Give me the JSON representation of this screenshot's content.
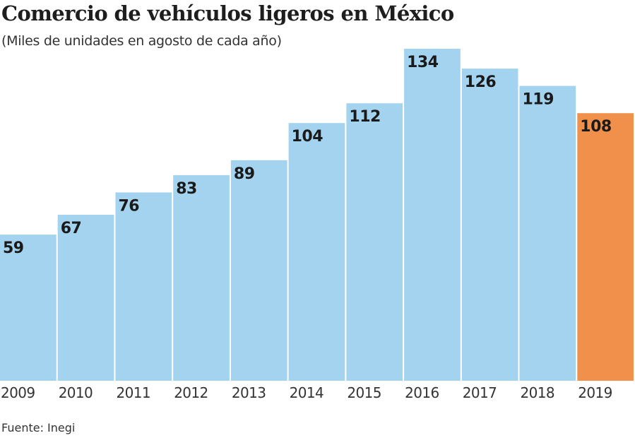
{
  "chart_data": {
    "type": "bar",
    "title": "Comercio de vehículos ligeros en México",
    "subtitle": "(Miles de unidades en agosto de cada año)",
    "source": "Fuente: Inegi",
    "categories": [
      "2009",
      "2010",
      "2011",
      "2012",
      "2013",
      "2014",
      "2015",
      "2016",
      "2017",
      "2018",
      "2019"
    ],
    "values": [
      59,
      67,
      76,
      83,
      89,
      104,
      112,
      134,
      126,
      119,
      108
    ],
    "ylim": [
      0,
      134
    ],
    "grid": false,
    "colors": {
      "default": "#a3d3ee",
      "highlight": "#f0904a"
    },
    "highlight_category": "2019"
  }
}
